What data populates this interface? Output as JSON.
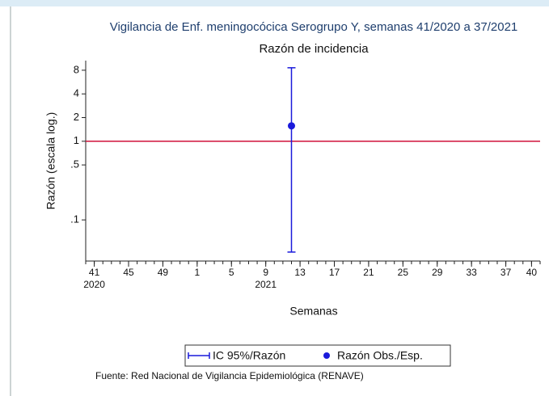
{
  "chart_data": {
    "type": "errorbar",
    "title": "Vigilancia de Enf. meningocócica Serogrupo Y, semanas 41/2020 a 37/2021",
    "subtitle": "Razón de incidencia",
    "x_label": "Semanas",
    "y_label": "Razón (escala log.)",
    "source": "Fuente: Red Nacional de Vigilancia Epidemiológica (RENAVE)",
    "y_log": true,
    "ylim": [
      0.03,
      10.6
    ],
    "yticks": [
      8,
      4,
      2,
      1,
      {
        "value": 0.5,
        "label": ".5"
      },
      {
        "value": 0.1,
        "label": ".1"
      }
    ],
    "xlim": [
      -1,
      52
    ],
    "xticks": [
      {
        "value": 0,
        "label": "41"
      },
      {
        "value": 4,
        "label": "45"
      },
      {
        "value": 8,
        "label": "49"
      },
      {
        "value": 12,
        "label": "1"
      },
      {
        "value": 16,
        "label": "5"
      },
      {
        "value": 20,
        "label": "9"
      },
      {
        "value": 24,
        "label": "13"
      },
      {
        "value": 28,
        "label": "17"
      },
      {
        "value": 32,
        "label": "21"
      },
      {
        "value": 36,
        "label": "25"
      },
      {
        "value": 40,
        "label": "29"
      },
      {
        "value": 44,
        "label": "33"
      },
      {
        "value": 48,
        "label": "37"
      },
      {
        "value": 51,
        "label": "40"
      }
    ],
    "xminor": 1,
    "year_labels": [
      {
        "value": 0,
        "label": "2020"
      },
      {
        "value": 20,
        "label": "2021"
      }
    ],
    "reference_line": {
      "value": 1,
      "color": "#d0103a"
    },
    "series": [
      {
        "name": "IC 95%/Razón",
        "color": "#1a1adb",
        "x": [
          23
        ],
        "low": [
          0.039
        ],
        "high": [
          8.6
        ]
      },
      {
        "name": "Razón Obs./Esp.",
        "color": "#1a1adb",
        "x": [
          23
        ],
        "values": [
          1.57
        ]
      }
    ]
  }
}
